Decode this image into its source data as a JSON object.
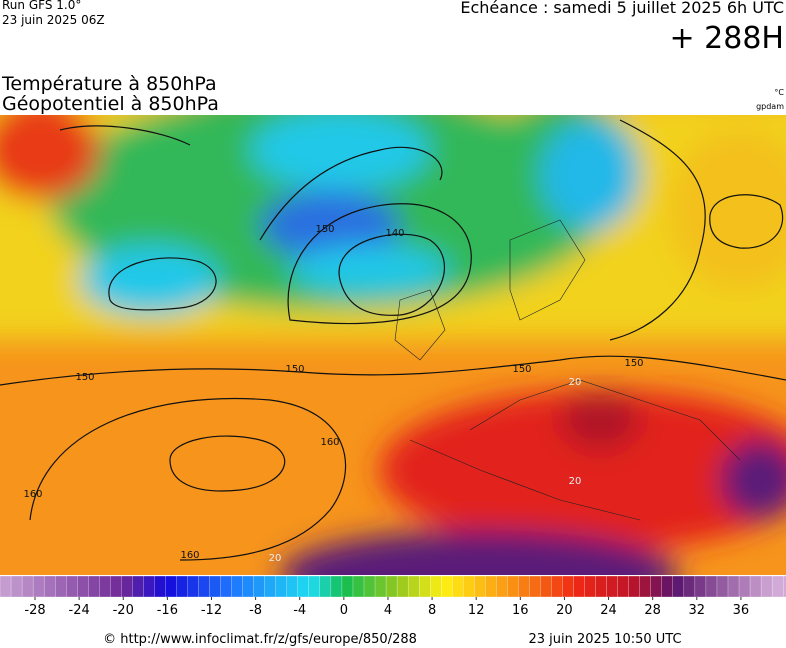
{
  "header": {
    "model": "Run GFS 1.0°",
    "run_date": "23 juin 2025 06Z",
    "valid": "Echéance : samedi 5 juillet 2025 6h UTC",
    "lead": "+ 288H",
    "title_line1": "Température à 850hPa",
    "title_line2": "Géopotentiel à 850hPa",
    "unit_temp": "°C",
    "unit_geo": "gpdam"
  },
  "contour_labels": [
    "150",
    "150",
    "150",
    "150",
    "150",
    "160",
    "160",
    "160",
    "20",
    "20",
    "20",
    "140"
  ],
  "colorbar": {
    "ticks": [
      -28,
      -24,
      -20,
      -16,
      -12,
      -8,
      -4,
      0,
      4,
      8,
      12,
      16,
      20,
      24,
      28,
      32,
      36
    ]
  },
  "footer": {
    "source": "© http://www.infoclimat.fr/z/gfs/europe/850/288",
    "generated": "23 juin 2025 10:50 UTC"
  }
}
